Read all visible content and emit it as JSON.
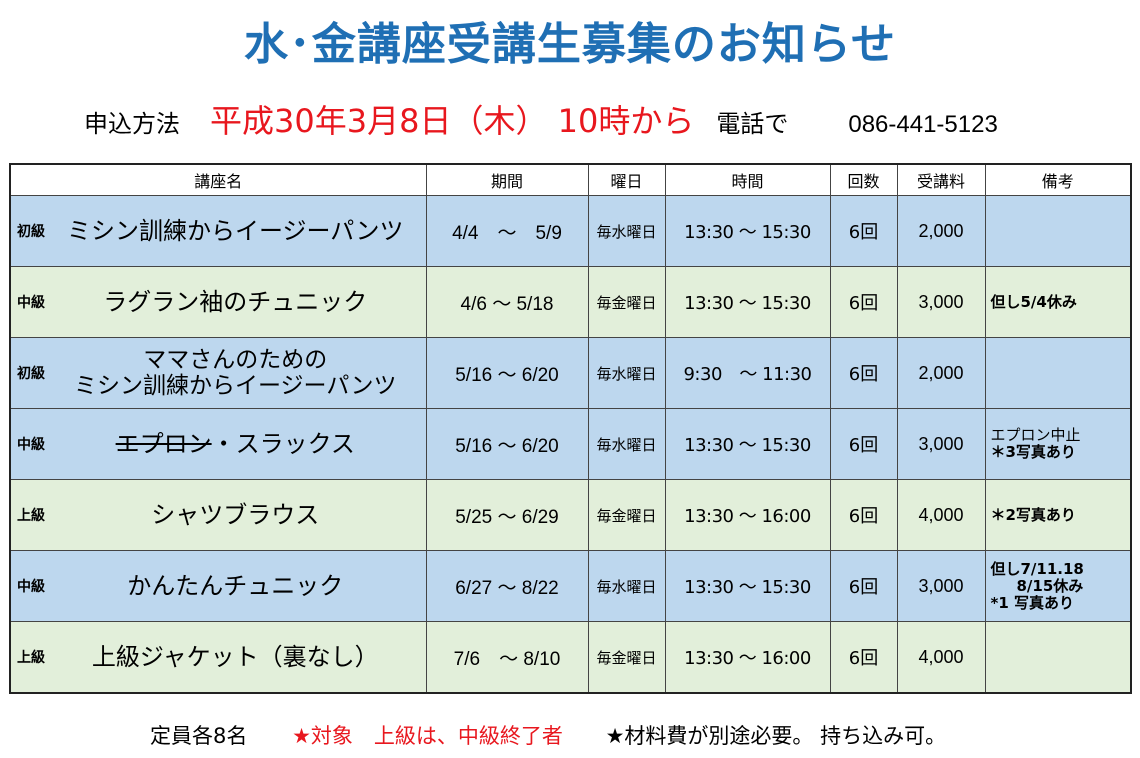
{
  "title": "水･金講座受講生募集のお知らせ",
  "apply": {
    "label": "申込方法",
    "date": "平成30年3月8日（木） 10時から",
    "tel_label": "電話で",
    "tel": "086-441-5123"
  },
  "headers": {
    "name": "講座名",
    "period": "期間",
    "weekday": "曜日",
    "time": "時間",
    "count": "回数",
    "fee": "受講料",
    "note": "備考"
  },
  "courses": [
    {
      "level": "初級",
      "name": "ミシン訓練からイージーパンツ",
      "period": "4/4　～　5/9",
      "weekday": "毎水曜日",
      "time": "13:30 ～ 15:30",
      "count": "6回",
      "fee": "2,000",
      "note": ""
    },
    {
      "level": "中級",
      "name": "ラグラン袖のチュニック",
      "period": "4/6 ～ 5/18",
      "weekday": "毎金曜日",
      "time": "13:30 ～ 15:30",
      "count": "6回",
      "fee": "3,000",
      "note": "但し5/4休み"
    },
    {
      "level": "初級",
      "name_line1": "ママさんのための",
      "name_line2": "ミシン訓練からイージーパンツ",
      "period": "5/16 ～ 6/20",
      "weekday": "毎水曜日",
      "time": "9:30　～ 11:30",
      "count": "6回",
      "fee": "2,000",
      "note": ""
    },
    {
      "level": "中級",
      "name_strike": "エプロン",
      "name_rest": "・スラックス",
      "period": "5/16 ～ 6/20",
      "weekday": "毎水曜日",
      "time": "13:30 ～ 15:30",
      "count": "6回",
      "fee": "3,000",
      "note_line1": "エプロン中止",
      "note_line2": "＊3写真あり"
    },
    {
      "level": "上級",
      "name": "シャツブラウス",
      "period": "5/25 ～ 6/29",
      "weekday": "毎金曜日",
      "time": "13:30 ～ 16:00",
      "count": "6回",
      "fee": "4,000",
      "note": "＊2写真あり"
    },
    {
      "level": "中級",
      "name": "かんたんチュニック",
      "period": "6/27 ～ 8/22",
      "weekday": "毎水曜日",
      "time": "13:30 ～ 15:30",
      "count": "6回",
      "fee": "3,000",
      "note_line1": "但し7/11.18",
      "note_line2": "8/15休み",
      "note_line3": "*1 写真あり"
    },
    {
      "level": "上級",
      "name": "上級ジャケット（裏なし）",
      "period": "7/6　～ 8/10",
      "weekday": "毎金曜日",
      "time": "13:30 ～ 16:00",
      "count": "6回",
      "fee": "4,000",
      "note": ""
    }
  ],
  "footer": {
    "capacity": "定員各8名",
    "target": "★対象　上級は、中級終了者",
    "materials": "★材料費が別途必要。 持ち込み可。"
  },
  "colors": {
    "title": "#1f6fb4",
    "red": "#e8171e",
    "row_blue": "#bdd7ee",
    "row_green": "#e2efda"
  }
}
